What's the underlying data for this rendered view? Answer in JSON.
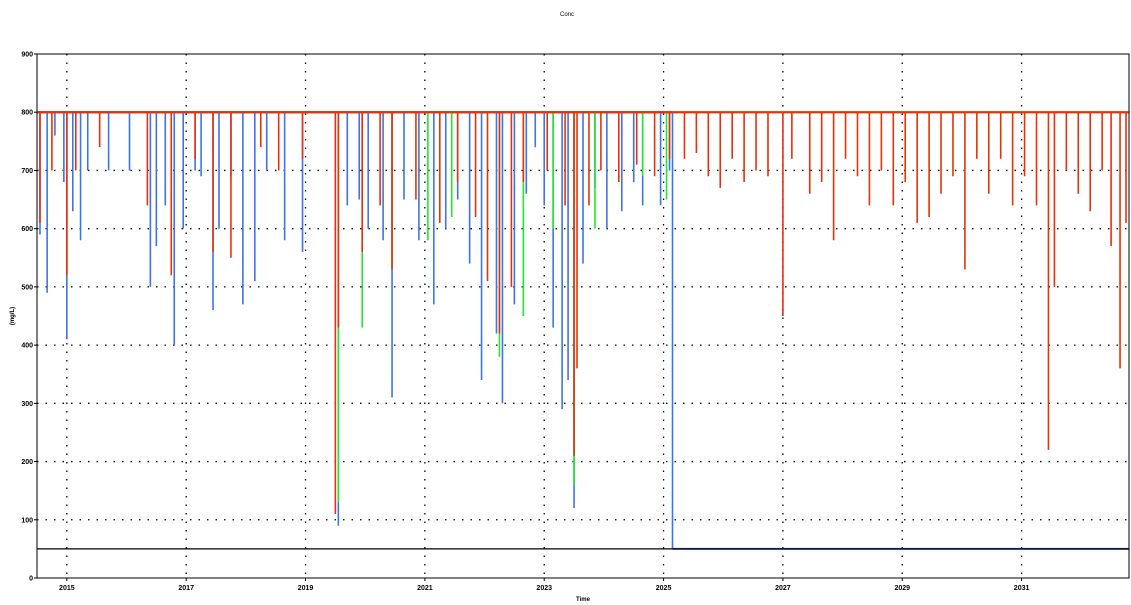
{
  "chart_data": {
    "type": "line",
    "title": "Conc",
    "xlabel": "Time",
    "ylabel": "(mg/L)",
    "x_ticks": [
      "2015",
      "2017",
      "2019",
      "2021",
      "2023",
      "2025",
      "2027",
      "2029",
      "2031"
    ],
    "y_ticks": [
      0,
      100,
      200,
      300,
      400,
      500,
      600,
      700,
      800,
      900
    ],
    "xlim": [
      2014.55,
      2032.85
    ],
    "ylim": [
      0,
      900
    ],
    "grid": true,
    "legend": "none",
    "colors": {
      "blue": "#3d74e6",
      "green": "#22e830",
      "red": "#e8310a",
      "threshold": "#000000",
      "grid": "#000000"
    },
    "threshold": 50,
    "baseline": 800,
    "series": [
      {
        "color": "blue",
        "x_end": 2025.2,
        "after_end_value": 50,
        "dips": [
          [
            2014.6,
            590
          ],
          [
            2014.72,
            490
          ],
          [
            2014.85,
            760
          ],
          [
            2015.0,
            680
          ],
          [
            2015.05,
            410
          ],
          [
            2015.15,
            630
          ],
          [
            2015.28,
            580
          ],
          [
            2015.4,
            700
          ],
          [
            2015.75,
            700
          ],
          [
            2016.1,
            700
          ],
          [
            2016.45,
            500
          ],
          [
            2016.55,
            570
          ],
          [
            2016.7,
            640
          ],
          [
            2016.85,
            400
          ],
          [
            2017.0,
            600
          ],
          [
            2017.2,
            700
          ],
          [
            2017.3,
            690
          ],
          [
            2017.5,
            460
          ],
          [
            2017.6,
            600
          ],
          [
            2017.8,
            690
          ],
          [
            2018.0,
            470
          ],
          [
            2018.2,
            510
          ],
          [
            2018.4,
            700
          ],
          [
            2018.7,
            580
          ],
          [
            2019.0,
            560
          ],
          [
            2019.6,
            90
          ],
          [
            2019.75,
            640
          ],
          [
            2019.95,
            650
          ],
          [
            2020.1,
            600
          ],
          [
            2020.35,
            580
          ],
          [
            2020.5,
            310
          ],
          [
            2020.7,
            650
          ],
          [
            2020.95,
            580
          ],
          [
            2021.2,
            470
          ],
          [
            2021.4,
            600
          ],
          [
            2021.6,
            650
          ],
          [
            2021.8,
            540
          ],
          [
            2022.0,
            340
          ],
          [
            2022.25,
            420
          ],
          [
            2022.35,
            300
          ],
          [
            2022.55,
            470
          ],
          [
            2022.75,
            660
          ],
          [
            2022.9,
            740
          ],
          [
            2023.05,
            640
          ],
          [
            2023.2,
            430
          ],
          [
            2023.35,
            290
          ],
          [
            2023.45,
            340
          ],
          [
            2023.55,
            120
          ],
          [
            2023.7,
            540
          ],
          [
            2023.9,
            670
          ],
          [
            2024.1,
            600
          ],
          [
            2024.35,
            630
          ],
          [
            2024.55,
            680
          ],
          [
            2024.7,
            640
          ],
          [
            2025.0,
            640
          ],
          [
            2025.15,
            700
          ]
        ]
      },
      {
        "color": "green",
        "dips": [
          [
            2019.6,
            130
          ],
          [
            2020.0,
            430
          ],
          [
            2020.5,
            530
          ],
          [
            2021.1,
            580
          ],
          [
            2021.5,
            620
          ],
          [
            2022.3,
            380
          ],
          [
            2022.7,
            450
          ],
          [
            2023.2,
            600
          ],
          [
            2023.55,
            160
          ],
          [
            2023.9,
            600
          ],
          [
            2024.7,
            690
          ],
          [
            2025.1,
            650
          ]
        ]
      },
      {
        "color": "red",
        "x_end": 2032.85,
        "dips": [
          [
            2014.6,
            610
          ],
          [
            2014.8,
            700
          ],
          [
            2015.05,
            520
          ],
          [
            2015.2,
            700
          ],
          [
            2015.6,
            740
          ],
          [
            2016.4,
            640
          ],
          [
            2016.8,
            520
          ],
          [
            2017.2,
            720
          ],
          [
            2017.5,
            560
          ],
          [
            2017.8,
            550
          ],
          [
            2018.3,
            740
          ],
          [
            2018.6,
            700
          ],
          [
            2019.0,
            720
          ],
          [
            2019.55,
            110
          ],
          [
            2019.6,
            430
          ],
          [
            2020.0,
            560
          ],
          [
            2020.3,
            640
          ],
          [
            2020.5,
            530
          ],
          [
            2020.9,
            650
          ],
          [
            2021.3,
            610
          ],
          [
            2021.6,
            680
          ],
          [
            2021.9,
            620
          ],
          [
            2022.1,
            510
          ],
          [
            2022.3,
            420
          ],
          [
            2022.5,
            500
          ],
          [
            2022.7,
            680
          ],
          [
            2023.1,
            700
          ],
          [
            2023.4,
            640
          ],
          [
            2023.55,
            210
          ],
          [
            2023.6,
            360
          ],
          [
            2023.8,
            640
          ],
          [
            2024.0,
            700
          ],
          [
            2024.3,
            680
          ],
          [
            2024.6,
            710
          ],
          [
            2024.9,
            690
          ],
          [
            2025.15,
            720
          ],
          [
            2025.4,
            720
          ],
          [
            2025.6,
            730
          ],
          [
            2025.8,
            690
          ],
          [
            2026.0,
            670
          ],
          [
            2026.2,
            720
          ],
          [
            2026.4,
            680
          ],
          [
            2026.6,
            700
          ],
          [
            2026.8,
            690
          ],
          [
            2027.05,
            450
          ],
          [
            2027.2,
            720
          ],
          [
            2027.5,
            660
          ],
          [
            2027.7,
            680
          ],
          [
            2027.9,
            580
          ],
          [
            2028.1,
            720
          ],
          [
            2028.3,
            690
          ],
          [
            2028.5,
            640
          ],
          [
            2028.7,
            700
          ],
          [
            2028.9,
            640
          ],
          [
            2029.1,
            680
          ],
          [
            2029.3,
            610
          ],
          [
            2029.5,
            620
          ],
          [
            2029.7,
            660
          ],
          [
            2029.9,
            690
          ],
          [
            2030.1,
            530
          ],
          [
            2030.3,
            720
          ],
          [
            2030.5,
            660
          ],
          [
            2030.7,
            720
          ],
          [
            2030.9,
            640
          ],
          [
            2031.1,
            690
          ],
          [
            2031.3,
            640
          ],
          [
            2031.5,
            220
          ],
          [
            2031.6,
            500
          ],
          [
            2031.8,
            700
          ],
          [
            2032.0,
            660
          ],
          [
            2032.2,
            630
          ],
          [
            2032.4,
            700
          ],
          [
            2032.55,
            570
          ],
          [
            2032.7,
            360
          ],
          [
            2032.8,
            610
          ]
        ]
      }
    ]
  }
}
